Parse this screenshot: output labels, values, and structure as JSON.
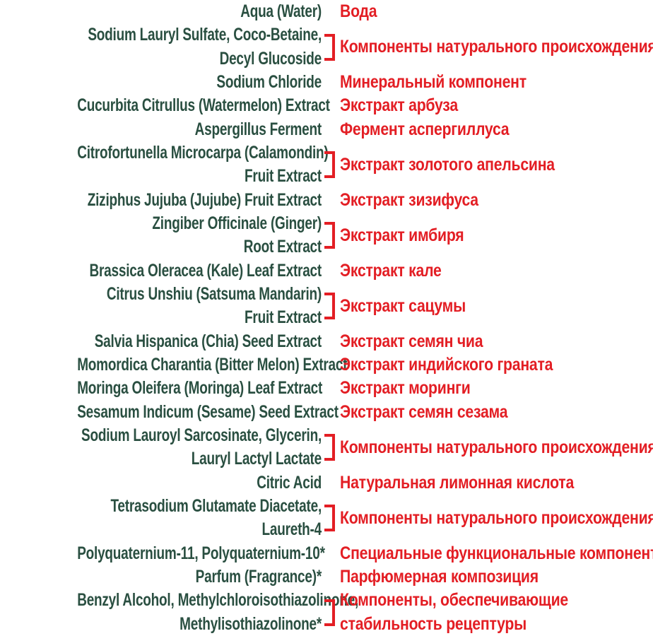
{
  "colors": {
    "ingredient_name_green": "#2a4f41",
    "description_red": "#e31e24",
    "background": "#ffffff"
  },
  "rows": [
    {
      "bracket": false,
      "inci_lines": [
        "Aqua (Water)"
      ],
      "desc_lines": [
        "Вода"
      ]
    },
    {
      "bracket": true,
      "inci_lines": [
        "Sodium Lauryl Sulfate, Coco-Betaine,",
        "Decyl Glucoside"
      ],
      "desc_lines": [
        "Компоненты натурального происхождения"
      ]
    },
    {
      "bracket": false,
      "inci_lines": [
        "Sodium Chloride"
      ],
      "desc_lines": [
        "Минеральный компонент"
      ]
    },
    {
      "bracket": false,
      "inci_lines": [
        "Cucurbita Citrullus (Watermelon) Extract"
      ],
      "desc_lines": [
        "Экстракт арбуза"
      ]
    },
    {
      "bracket": false,
      "inci_lines": [
        "Aspergillus Ferment"
      ],
      "desc_lines": [
        "Фермент аспергиллуса"
      ]
    },
    {
      "bracket": true,
      "inci_lines": [
        "Citrofortunella Microcarpa (Calamondin)",
        "Fruit Extract"
      ],
      "desc_lines": [
        "Экстракт золотого апельсина"
      ]
    },
    {
      "bracket": false,
      "inci_lines": [
        "Ziziphus Jujuba (Jujube) Fruit Extract"
      ],
      "desc_lines": [
        "Экстракт зизифуса"
      ]
    },
    {
      "bracket": true,
      "inci_lines": [
        "Zingiber Officinale (Ginger)",
        "Root Extract"
      ],
      "desc_lines": [
        "Экстракт имбиря"
      ]
    },
    {
      "bracket": false,
      "inci_lines": [
        "Brassica Oleracea (Kale) Leaf Extract"
      ],
      "desc_lines": [
        "Экстракт кале"
      ]
    },
    {
      "bracket": true,
      "inci_lines": [
        "Citrus Unshiu (Satsuma Mandarin)",
        "Fruit Extract"
      ],
      "desc_lines": [
        "Экстракт сацумы"
      ]
    },
    {
      "bracket": false,
      "inci_lines": [
        "Salvia Hispanica (Chia) Seed Extract"
      ],
      "desc_lines": [
        "Экстракт семян чиа"
      ]
    },
    {
      "bracket": false,
      "inci_lines": [
        "Momordica Charantia (Bitter Melon) Extract"
      ],
      "desc_lines": [
        "Экстракт индийского граната"
      ]
    },
    {
      "bracket": false,
      "inci_lines": [
        "Moringa Oleifera (Moringa) Leaf Extract"
      ],
      "desc_lines": [
        "Экстракт моринги"
      ]
    },
    {
      "bracket": false,
      "inci_lines": [
        "Sesamum Indicum (Sesame) Seed Extract"
      ],
      "desc_lines": [
        "Экстракт семян сезама"
      ]
    },
    {
      "bracket": true,
      "inci_lines": [
        "Sodium Lauroyl Sarcosinate, Glycerin,",
        "Lauryl Lactyl Lactate"
      ],
      "desc_lines": [
        "Компоненты натурального происхождения"
      ]
    },
    {
      "bracket": false,
      "inci_lines": [
        "Citric Acid"
      ],
      "desc_lines": [
        "Натуральная лимонная кислота"
      ]
    },
    {
      "bracket": true,
      "inci_lines": [
        "Tetrasodium Glutamate Diacetate,",
        "Laureth-4"
      ],
      "desc_lines": [
        "Компоненты натурального происхождения"
      ]
    },
    {
      "bracket": false,
      "inci_lines": [
        "Polyquaternium-11, Polyquaternium-10*"
      ],
      "desc_lines": [
        "Специальные функциональные компоненты"
      ]
    },
    {
      "bracket": false,
      "inci_lines": [
        "Parfum (Fragrance)*"
      ],
      "desc_lines": [
        "Парфюмерная композиция"
      ]
    },
    {
      "bracket": true,
      "inci_lines": [
        "Benzyl Alcohol, Methylchloroisothiazolinone,",
        "Methylisothiazolinone*"
      ],
      "desc_lines": [
        "Компоненты, обеспечивающие",
        "стабильность рецептуры"
      ]
    }
  ]
}
